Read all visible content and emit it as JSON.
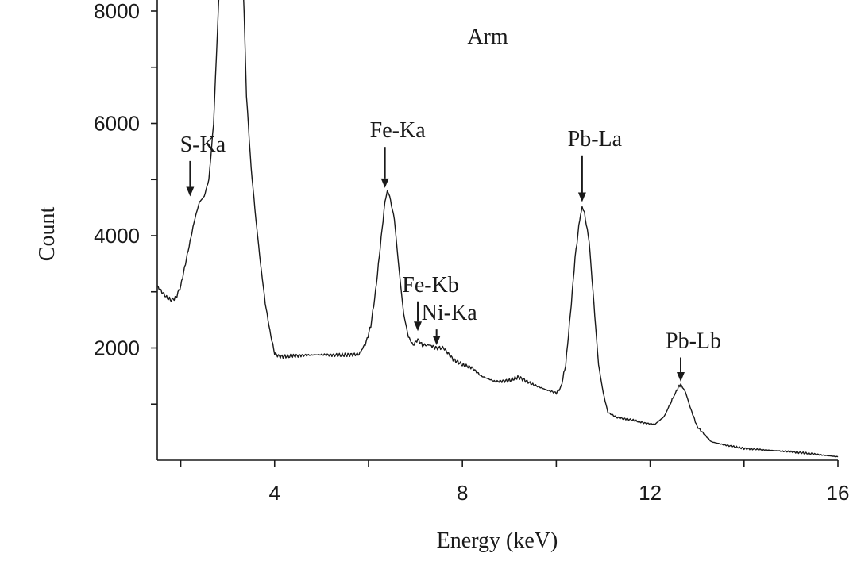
{
  "chart_data": {
    "type": "line",
    "title": "Arm",
    "xlabel": "Energy (keV)",
    "ylabel": "Count",
    "xlim": [
      1.5,
      16
    ],
    "ylim": [
      0,
      8000
    ],
    "x_ticks": [
      4,
      8,
      12,
      16
    ],
    "y_ticks": [
      2000,
      4000,
      6000,
      8000
    ],
    "grid": false,
    "series": [
      {
        "values_xy": [
          [
            1.5,
            3100
          ],
          [
            1.6,
            3000
          ],
          [
            1.7,
            2900
          ],
          [
            1.8,
            2850
          ],
          [
            1.9,
            2900
          ],
          [
            2.0,
            3100
          ],
          [
            2.1,
            3500
          ],
          [
            2.2,
            3900
          ],
          [
            2.3,
            4300
          ],
          [
            2.4,
            4600
          ],
          [
            2.5,
            4700
          ],
          [
            2.6,
            5000
          ],
          [
            2.7,
            6000
          ],
          [
            2.8,
            8000
          ],
          [
            2.85,
            9000
          ],
          [
            3.3,
            9000
          ],
          [
            3.35,
            8000
          ],
          [
            3.4,
            6500
          ],
          [
            3.5,
            5200
          ],
          [
            3.6,
            4300
          ],
          [
            3.7,
            3500
          ],
          [
            3.8,
            2800
          ],
          [
            3.9,
            2300
          ],
          [
            4.0,
            1900
          ],
          [
            4.1,
            1850
          ],
          [
            4.3,
            1850
          ],
          [
            4.6,
            1870
          ],
          [
            5.0,
            1880
          ],
          [
            5.4,
            1870
          ],
          [
            5.8,
            1890
          ],
          [
            5.95,
            2100
          ],
          [
            6.05,
            2400
          ],
          [
            6.15,
            3000
          ],
          [
            6.25,
            3800
          ],
          [
            6.35,
            4600
          ],
          [
            6.4,
            4800
          ],
          [
            6.45,
            4700
          ],
          [
            6.55,
            4300
          ],
          [
            6.65,
            3400
          ],
          [
            6.75,
            2600
          ],
          [
            6.85,
            2200
          ],
          [
            6.95,
            2050
          ],
          [
            7.05,
            2150
          ],
          [
            7.15,
            2050
          ],
          [
            7.3,
            2050
          ],
          [
            7.45,
            2000
          ],
          [
            7.6,
            2000
          ],
          [
            7.8,
            1800
          ],
          [
            8.0,
            1700
          ],
          [
            8.2,
            1650
          ],
          [
            8.4,
            1500
          ],
          [
            8.7,
            1400
          ],
          [
            9.0,
            1420
          ],
          [
            9.2,
            1480
          ],
          [
            9.5,
            1350
          ],
          [
            9.8,
            1250
          ],
          [
            10.0,
            1200
          ],
          [
            10.1,
            1300
          ],
          [
            10.2,
            1700
          ],
          [
            10.3,
            2600
          ],
          [
            10.4,
            3600
          ],
          [
            10.5,
            4300
          ],
          [
            10.55,
            4500
          ],
          [
            10.6,
            4400
          ],
          [
            10.7,
            3900
          ],
          [
            10.8,
            2800
          ],
          [
            10.9,
            1700
          ],
          [
            11.0,
            1200
          ],
          [
            11.1,
            850
          ],
          [
            11.3,
            760
          ],
          [
            11.6,
            720
          ],
          [
            11.9,
            660
          ],
          [
            12.1,
            640
          ],
          [
            12.3,
            780
          ],
          [
            12.45,
            1050
          ],
          [
            12.6,
            1300
          ],
          [
            12.65,
            1350
          ],
          [
            12.75,
            1220
          ],
          [
            12.85,
            950
          ],
          [
            13.0,
            600
          ],
          [
            13.3,
            330
          ],
          [
            13.6,
            270
          ],
          [
            14.0,
            210
          ],
          [
            14.5,
            180
          ],
          [
            15.0,
            150
          ],
          [
            15.5,
            110
          ],
          [
            16.0,
            60
          ]
        ]
      }
    ],
    "annotations": [
      {
        "label": "S-Ka",
        "x": 2.2,
        "arrow_tip_y": 4700,
        "label_y": 5500
      },
      {
        "label": "Fe-Ka",
        "x": 6.35,
        "arrow_tip_y": 4850,
        "label_y": 5750
      },
      {
        "label": "Fe-Kb",
        "x": 7.05,
        "arrow_tip_y": 2300,
        "label_y": 3000
      },
      {
        "label": "Ni-Ka",
        "x": 7.45,
        "arrow_tip_y": 2050,
        "label_y": 2500
      },
      {
        "label": "Pb-La",
        "x": 10.55,
        "arrow_tip_y": 4600,
        "label_y": 5600
      },
      {
        "label": "Pb-Lb",
        "x": 12.65,
        "arrow_tip_y": 1400,
        "label_y": 2000
      }
    ]
  }
}
